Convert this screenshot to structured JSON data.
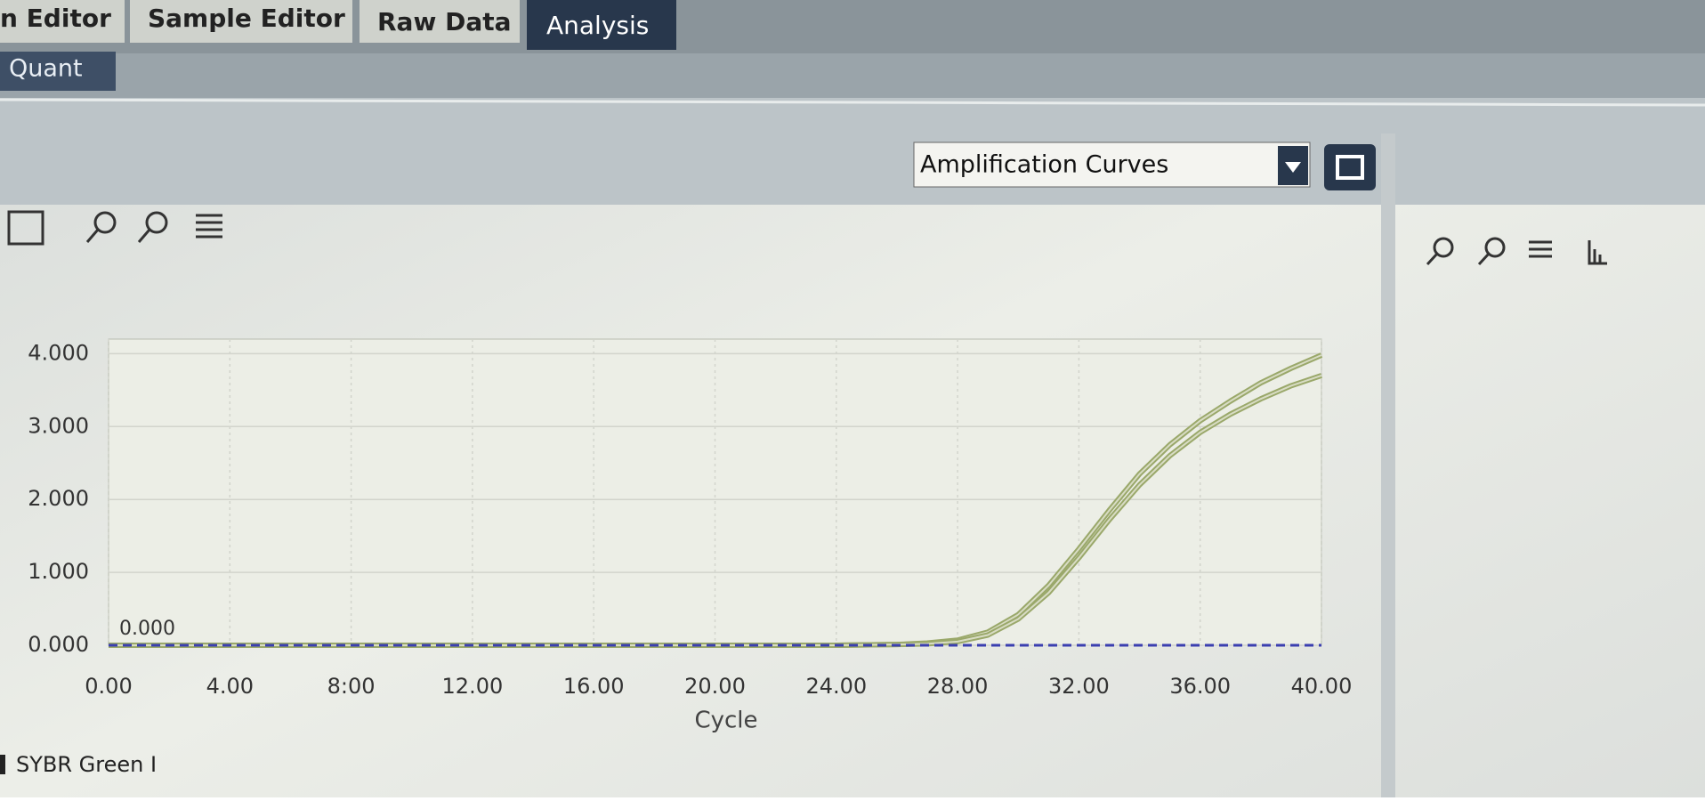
{
  "tabs": [
    "n Editor",
    "Sample Editor",
    "Raw Data",
    "Analysis"
  ],
  "subtab": "Quant",
  "dropdown": "Amplification Curves",
  "chart_data": {
    "type": "line",
    "xlabel": "Cycle",
    "legend": "SYBR Green I",
    "x": [
      0,
      4,
      8,
      12,
      16,
      20,
      24,
      26,
      27,
      28,
      29,
      30,
      31,
      32,
      33,
      34,
      35,
      36,
      37,
      38,
      39,
      40
    ],
    "series": [
      {
        "color": "#9aa86a",
        "values": [
          0,
          0,
          0,
          0,
          0,
          0,
          0,
          0.01,
          0.03,
          0.07,
          0.18,
          0.42,
          0.82,
          1.32,
          1.85,
          2.35,
          2.75,
          3.08,
          3.35,
          3.6,
          3.8,
          3.98
        ]
      },
      {
        "color": "#9aa86a",
        "values": [
          0,
          0,
          0,
          0,
          0,
          0,
          0,
          0.01,
          0.02,
          0.05,
          0.14,
          0.36,
          0.72,
          1.2,
          1.72,
          2.2,
          2.6,
          2.92,
          3.17,
          3.38,
          3.56,
          3.7
        ]
      }
    ],
    "threshold": {
      "value": 0,
      "label": "0.000",
      "color": "#3b3fb0"
    },
    "xlim": [
      0,
      40
    ],
    "ylim": [
      0,
      4.2
    ],
    "xticks": [
      {
        "value": 0,
        "label": "0.00"
      },
      {
        "value": 4,
        "label": "4.00"
      },
      {
        "value": 8,
        "label": "8:00"
      },
      {
        "value": 12,
        "label": "12.00"
      },
      {
        "value": 16,
        "label": "16.00"
      },
      {
        "value": 20,
        "label": "20.00"
      },
      {
        "value": 24,
        "label": "24.00"
      },
      {
        "value": 28,
        "label": "28.00"
      },
      {
        "value": 32,
        "label": "32.00"
      },
      {
        "value": 36,
        "label": "36.00"
      },
      {
        "value": 40,
        "label": "40.00"
      }
    ],
    "yticks": [
      {
        "value": 0,
        "label": "0.000"
      },
      {
        "value": 1,
        "label": "1.000"
      },
      {
        "value": 2,
        "label": "2.000"
      },
      {
        "value": 3,
        "label": "3.000"
      },
      {
        "value": 4,
        "label": "4.000"
      }
    ],
    "grid": true
  }
}
